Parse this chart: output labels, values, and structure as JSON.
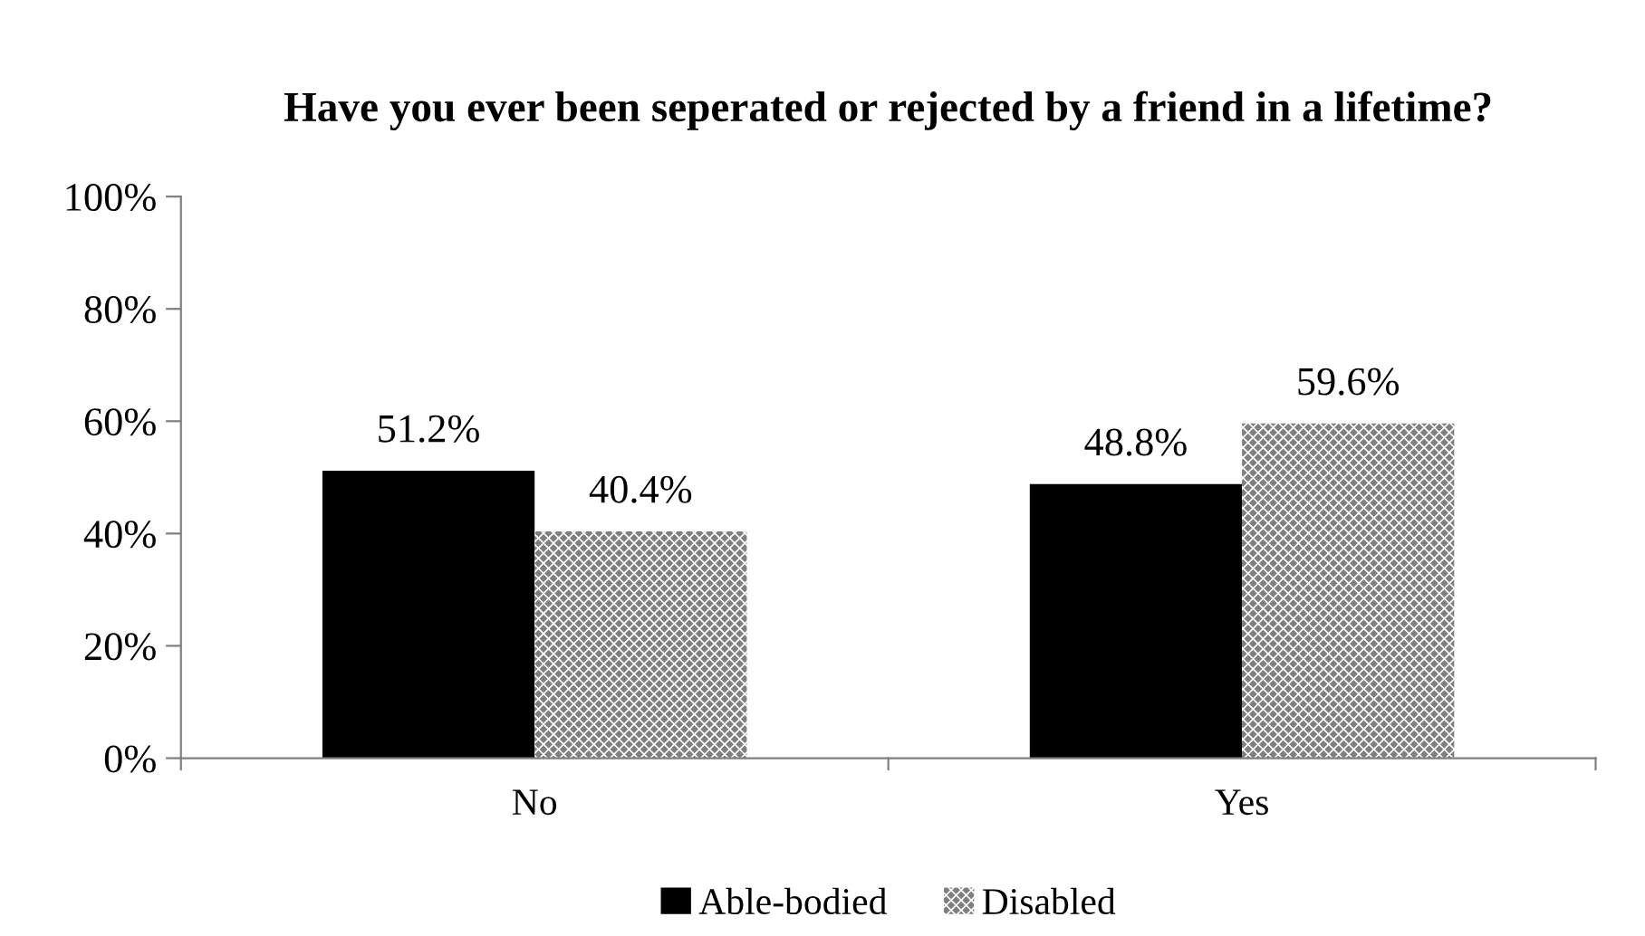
{
  "chart_data": {
    "type": "bar",
    "title": "Have you ever been seperated or rejected by a friend in a lifetime?",
    "categories": [
      "No",
      "Yes"
    ],
    "series": [
      {
        "name": "Able-bodied",
        "color": "#000000",
        "values": [
          51.2,
          48.8
        ],
        "value_labels": [
          "51.2%",
          "48.8%"
        ]
      },
      {
        "name": "Disabled",
        "color": "#7f7f7f",
        "values": [
          40.4,
          59.6
        ],
        "value_labels": [
          "40.4%",
          "59.6%"
        ]
      }
    ],
    "ylim": [
      0,
      100
    ],
    "yticks": [
      {
        "value": 0,
        "label": "0%"
      },
      {
        "value": 20,
        "label": "20%"
      },
      {
        "value": 40,
        "label": "40%"
      },
      {
        "value": 60,
        "label": "60%"
      },
      {
        "value": 80,
        "label": "80%"
      },
      {
        "value": 100,
        "label": "100%"
      }
    ],
    "grid": false,
    "legend": "bottom"
  }
}
